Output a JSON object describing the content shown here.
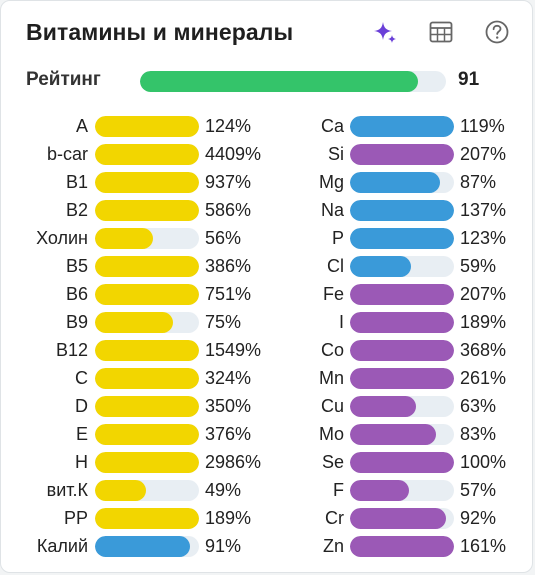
{
  "header": {
    "title": "Витамины и минералы",
    "icons": [
      "sparkle-icon",
      "table-icon",
      "help-icon"
    ]
  },
  "rating": {
    "label": "Рейтинг",
    "value": "91",
    "fraction": 0.91,
    "color": "#34c46a"
  },
  "colors": {
    "vitamin": "#f2d600",
    "mineral_blue": "#3a9ad9",
    "mineral_purple": "#9b59b6",
    "track": "#e8eef3"
  },
  "vitamins": [
    {
      "name": "A",
      "pct": "124%",
      "value": 124,
      "color": "#f2d600"
    },
    {
      "name": "b-car",
      "pct": "4409%",
      "value": 4409,
      "color": "#f2d600"
    },
    {
      "name": "B1",
      "pct": "937%",
      "value": 937,
      "color": "#f2d600"
    },
    {
      "name": "B2",
      "pct": "586%",
      "value": 586,
      "color": "#f2d600"
    },
    {
      "name": "Холин",
      "pct": "56%",
      "value": 56,
      "color": "#f2d600"
    },
    {
      "name": "B5",
      "pct": "386%",
      "value": 386,
      "color": "#f2d600"
    },
    {
      "name": "B6",
      "pct": "751%",
      "value": 751,
      "color": "#f2d600"
    },
    {
      "name": "B9",
      "pct": "75%",
      "value": 75,
      "color": "#f2d600"
    },
    {
      "name": "B12",
      "pct": "1549%",
      "value": 1549,
      "color": "#f2d600"
    },
    {
      "name": "C",
      "pct": "324%",
      "value": 324,
      "color": "#f2d600"
    },
    {
      "name": "D",
      "pct": "350%",
      "value": 350,
      "color": "#f2d600"
    },
    {
      "name": "E",
      "pct": "376%",
      "value": 376,
      "color": "#f2d600"
    },
    {
      "name": "H",
      "pct": "2986%",
      "value": 2986,
      "color": "#f2d600"
    },
    {
      "name": "вит.К",
      "pct": "49%",
      "value": 49,
      "color": "#f2d600"
    },
    {
      "name": "PP",
      "pct": "189%",
      "value": 189,
      "color": "#f2d600"
    },
    {
      "name": "Калий",
      "pct": "91%",
      "value": 91,
      "color": "#3a9ad9"
    }
  ],
  "minerals": [
    {
      "name": "Ca",
      "pct": "119%",
      "value": 119,
      "color": "#3a9ad9"
    },
    {
      "name": "Si",
      "pct": "207%",
      "value": 207,
      "color": "#9b59b6"
    },
    {
      "name": "Mg",
      "pct": "87%",
      "value": 87,
      "color": "#3a9ad9"
    },
    {
      "name": "Na",
      "pct": "137%",
      "value": 137,
      "color": "#3a9ad9"
    },
    {
      "name": "P",
      "pct": "123%",
      "value": 123,
      "color": "#3a9ad9"
    },
    {
      "name": "Cl",
      "pct": "59%",
      "value": 59,
      "color": "#3a9ad9"
    },
    {
      "name": "Fe",
      "pct": "207%",
      "value": 207,
      "color": "#9b59b6"
    },
    {
      "name": "I",
      "pct": "189%",
      "value": 189,
      "color": "#9b59b6"
    },
    {
      "name": "Co",
      "pct": "368%",
      "value": 368,
      "color": "#9b59b6"
    },
    {
      "name": "Mn",
      "pct": "261%",
      "value": 261,
      "color": "#9b59b6"
    },
    {
      "name": "Cu",
      "pct": "63%",
      "value": 63,
      "color": "#9b59b6"
    },
    {
      "name": "Mo",
      "pct": "83%",
      "value": 83,
      "color": "#9b59b6"
    },
    {
      "name": "Se",
      "pct": "100%",
      "value": 100,
      "color": "#9b59b6"
    },
    {
      "name": "F",
      "pct": "57%",
      "value": 57,
      "color": "#9b59b6"
    },
    {
      "name": "Cr",
      "pct": "92%",
      "value": 92,
      "color": "#9b59b6"
    },
    {
      "name": "Zn",
      "pct": "161%",
      "value": 161,
      "color": "#9b59b6"
    }
  ]
}
